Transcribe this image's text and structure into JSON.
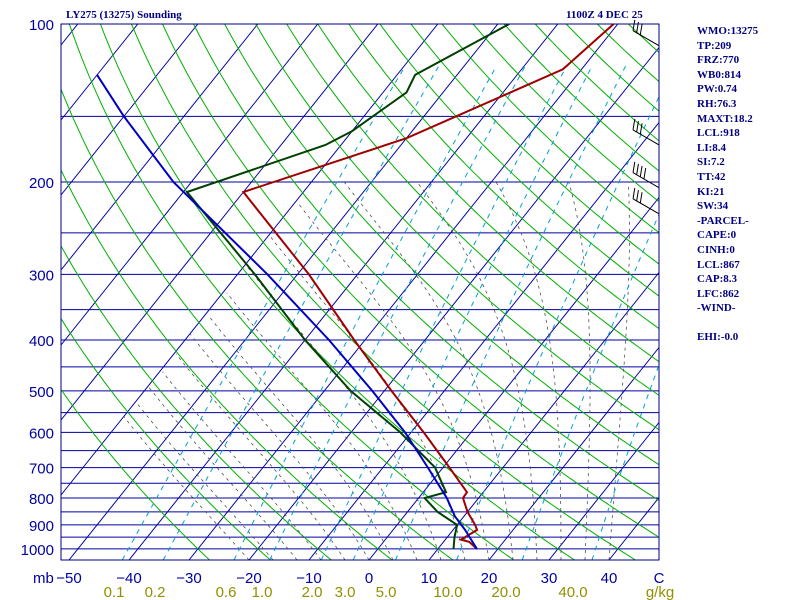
{
  "header": {
    "title": "LY275 (13275) Sounding",
    "timestamp": "1100Z  4 DEC 25"
  },
  "stats": [
    "WMO:13275",
    "TP:209",
    "FRZ:770",
    "WB0:814",
    "PW:0.74",
    "RH:76.3",
    "MAXT:18.2",
    "LCL:918",
    "LI:8.4",
    "SI:7.2",
    "TT:42",
    "KI:21",
    "SW:34",
    "-PARCEL-",
    "CAPE:0",
    "CINH:0",
    "LCL:867",
    "CAP:8.3",
    "LFC:862",
    "-WIND-",
    "EHI:-0.0"
  ],
  "colors": {
    "frame": "#000080",
    "isobar": "#0000a0",
    "isotherm": "#0000a0",
    "dry_adiabat": "#00b000",
    "moist_adiabat": "#505050",
    "mixing_ratio": "#00a0d0",
    "temperature": "#a00000",
    "dewpoint": "#004000",
    "parcel": "#0000c0",
    "bottom_labels": "#909000",
    "wind": "#000000"
  },
  "chart_data": {
    "type": "skew-t log-p sounding",
    "pressure_unit": "mb",
    "pressure_labels": [
      100,
      200,
      300,
      400,
      500,
      600,
      700,
      800,
      900,
      1000
    ],
    "pressure_range": [
      100,
      1050
    ],
    "temperature_unit": "°C",
    "temperature_labels": [
      -50,
      -40,
      -30,
      -20,
      -10,
      0,
      10,
      20,
      30,
      40
    ],
    "x_axis_title": "mb",
    "mixing_ratio_unit": "g/kg",
    "mixing_ratio_labels": [
      "0.1",
      "0.2",
      "0.6",
      "1.0",
      "2.0",
      "3.0",
      "5.0",
      "10.0",
      "20.0",
      "40.0"
    ],
    "mixing_ratio_values": [
      0.1,
      0.2,
      0.6,
      1.0,
      2.0,
      3.0,
      5.0,
      10.0,
      20.0,
      40.0
    ],
    "corner_label": "C",
    "series": [
      {
        "name": "Temperature",
        "points": [
          {
            "p": 100,
            "t": -30.7
          },
          {
            "p": 122,
            "t": -33.1
          },
          {
            "p": 155,
            "t": -46.5
          },
          {
            "p": 165,
            "t": -50.0
          },
          {
            "p": 209,
            "t": -70.0
          },
          {
            "p": 300,
            "t": -48.1
          },
          {
            "p": 400,
            "t": -31.8
          },
          {
            "p": 500,
            "t": -18.8
          },
          {
            "p": 600,
            "t": -7.9
          },
          {
            "p": 700,
            "t": 1.1
          },
          {
            "p": 780,
            "t": 7.3
          },
          {
            "p": 800,
            "t": 7.4
          },
          {
            "p": 850,
            "t": 10.0
          },
          {
            "p": 900,
            "t": 13.0
          },
          {
            "p": 920,
            "t": 14.0
          },
          {
            "p": 960,
            "t": 12.6
          },
          {
            "p": 970,
            "t": 14.3
          },
          {
            "p": 1000,
            "t": 16.5
          }
        ]
      },
      {
        "name": "Dewpoint",
        "points": [
          {
            "p": 100,
            "t": -48.1
          },
          {
            "p": 125,
            "t": -57.0
          },
          {
            "p": 135,
            "t": -56.1
          },
          {
            "p": 160,
            "t": -60.0
          },
          {
            "p": 170,
            "t": -62.6
          },
          {
            "p": 209,
            "t": -79.4
          },
          {
            "p": 300,
            "t": -57.1
          },
          {
            "p": 400,
            "t": -40.0
          },
          {
            "p": 500,
            "t": -25.6
          },
          {
            "p": 600,
            "t": -11.8
          },
          {
            "p": 700,
            "t": -1.3
          },
          {
            "p": 780,
            "t": 3.8
          },
          {
            "p": 800,
            "t": 1.0
          },
          {
            "p": 850,
            "t": 5.0
          },
          {
            "p": 900,
            "t": 10.0
          },
          {
            "p": 950,
            "t": 11.2
          },
          {
            "p": 1000,
            "t": 12.6
          }
        ]
      },
      {
        "name": "Parcel",
        "points": [
          {
            "p": 1000,
            "t": 16.5
          },
          {
            "p": 920,
            "t": 12.0
          },
          {
            "p": 867,
            "t": 8.5
          },
          {
            "p": 800,
            "t": 4.7
          },
          {
            "p": 700,
            "t": -2.5
          },
          {
            "p": 600,
            "t": -11.0
          },
          {
            "p": 500,
            "t": -22.0
          },
          {
            "p": 400,
            "t": -36.0
          },
          {
            "p": 300,
            "t": -55.0
          },
          {
            "p": 200,
            "t": -83.0
          },
          {
            "p": 150,
            "t": -100.0
          },
          {
            "p": 125,
            "t": -110.0
          }
        ]
      }
    ],
    "wind_barbs": [
      {
        "p": 110,
        "direction_deg": 300,
        "speed_kt": 30
      },
      {
        "p": 170,
        "direction_deg": 300,
        "speed_kt": 30
      },
      {
        "p": 205,
        "direction_deg": 300,
        "speed_kt": 40
      },
      {
        "p": 230,
        "direction_deg": 300,
        "speed_kt": 30
      }
    ]
  }
}
